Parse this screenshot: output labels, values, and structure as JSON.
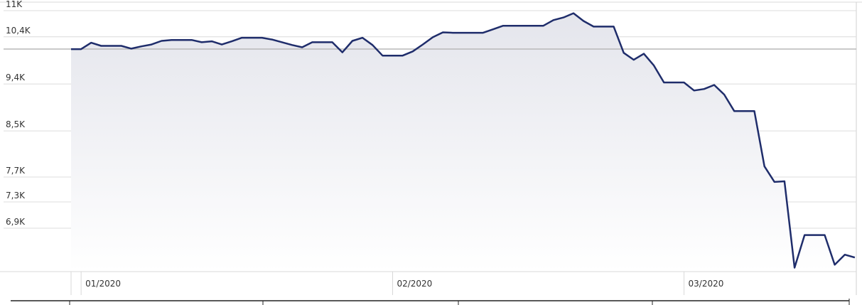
{
  "chart_data": {
    "type": "area",
    "title": "",
    "xlabel": "",
    "ylabel": "",
    "y_scale": "log",
    "ylim": [
      6300,
      11000
    ],
    "grid": true,
    "legend": "none",
    "colors": {
      "line": "#1f2d6b",
      "fill_top": "#e4e5ec",
      "fill_bottom": "#ffffff",
      "grid": "#dcdcdc",
      "reference_line": "#b8b8b8"
    },
    "y_ticks": [
      {
        "value": 11000,
        "label": "11K"
      },
      {
        "value": 10400,
        "label": "10,4K"
      },
      {
        "value": 9400,
        "label": "9,4K"
      },
      {
        "value": 8500,
        "label": "8,5K"
      },
      {
        "value": 7700,
        "label": "7,7K"
      },
      {
        "value": 7300,
        "label": "7,3K"
      },
      {
        "value": 6900,
        "label": "6,9K"
      }
    ],
    "x_ticks": [
      {
        "date": "2020-01-01",
        "label": "01/2020"
      },
      {
        "date": "2020-02-01",
        "label": "02/2020"
      },
      {
        "date": "2020-03-01",
        "label": "03/2020"
      }
    ],
    "reference_value": 10130,
    "x": [
      "2019-12-31",
      "2020-01-01",
      "2020-01-02",
      "2020-01-03",
      "2020-01-04",
      "2020-01-05",
      "2020-01-06",
      "2020-01-07",
      "2020-01-08",
      "2020-01-09",
      "2020-01-10",
      "2020-01-11",
      "2020-01-12",
      "2020-01-13",
      "2020-01-14",
      "2020-01-15",
      "2020-01-16",
      "2020-01-17",
      "2020-01-18",
      "2020-01-19",
      "2020-01-20",
      "2020-01-21",
      "2020-01-22",
      "2020-01-23",
      "2020-01-24",
      "2020-01-25",
      "2020-01-26",
      "2020-01-27",
      "2020-01-28",
      "2020-01-29",
      "2020-01-30",
      "2020-01-31",
      "2020-02-01",
      "2020-02-02",
      "2020-02-03",
      "2020-02-04",
      "2020-02-05",
      "2020-02-06",
      "2020-02-07",
      "2020-02-08",
      "2020-02-09",
      "2020-02-10",
      "2020-02-11",
      "2020-02-12",
      "2020-02-13",
      "2020-02-14",
      "2020-02-15",
      "2020-02-16",
      "2020-02-17",
      "2020-02-18",
      "2020-02-19",
      "2020-02-20",
      "2020-02-21",
      "2020-02-22",
      "2020-02-23",
      "2020-02-24",
      "2020-02-25",
      "2020-02-26",
      "2020-02-27",
      "2020-02-28",
      "2020-02-29",
      "2020-03-01",
      "2020-03-02",
      "2020-03-03",
      "2020-03-04",
      "2020-03-05",
      "2020-03-06",
      "2020-03-07",
      "2020-03-08",
      "2020-03-09",
      "2020-03-10",
      "2020-03-11",
      "2020-03-12",
      "2020-03-13",
      "2020-03-14",
      "2020-03-15",
      "2020-03-16",
      "2020-03-17",
      "2020-03-18"
    ],
    "values": [
      10130,
      10130,
      10270,
      10200,
      10200,
      10200,
      10140,
      10190,
      10230,
      10310,
      10330,
      10330,
      10330,
      10280,
      10300,
      10230,
      10300,
      10380,
      10380,
      10380,
      10340,
      10280,
      10220,
      10170,
      10280,
      10280,
      10280,
      10060,
      10310,
      10380,
      10220,
      9990,
      9990,
      9990,
      10080,
      10230,
      10390,
      10500,
      10490,
      10490,
      10490,
      10490,
      10570,
      10650,
      10650,
      10650,
      10650,
      10650,
      10780,
      10840,
      10940,
      10760,
      10630,
      10630,
      10630,
      10050,
      9900,
      10030,
      9780,
      9430,
      9430,
      9430,
      9270,
      9300,
      9380,
      9190,
      8870,
      8870,
      8870,
      7880,
      7620,
      7630,
      6340,
      6800,
      6800,
      6800,
      6380,
      6520,
      6480
    ]
  }
}
